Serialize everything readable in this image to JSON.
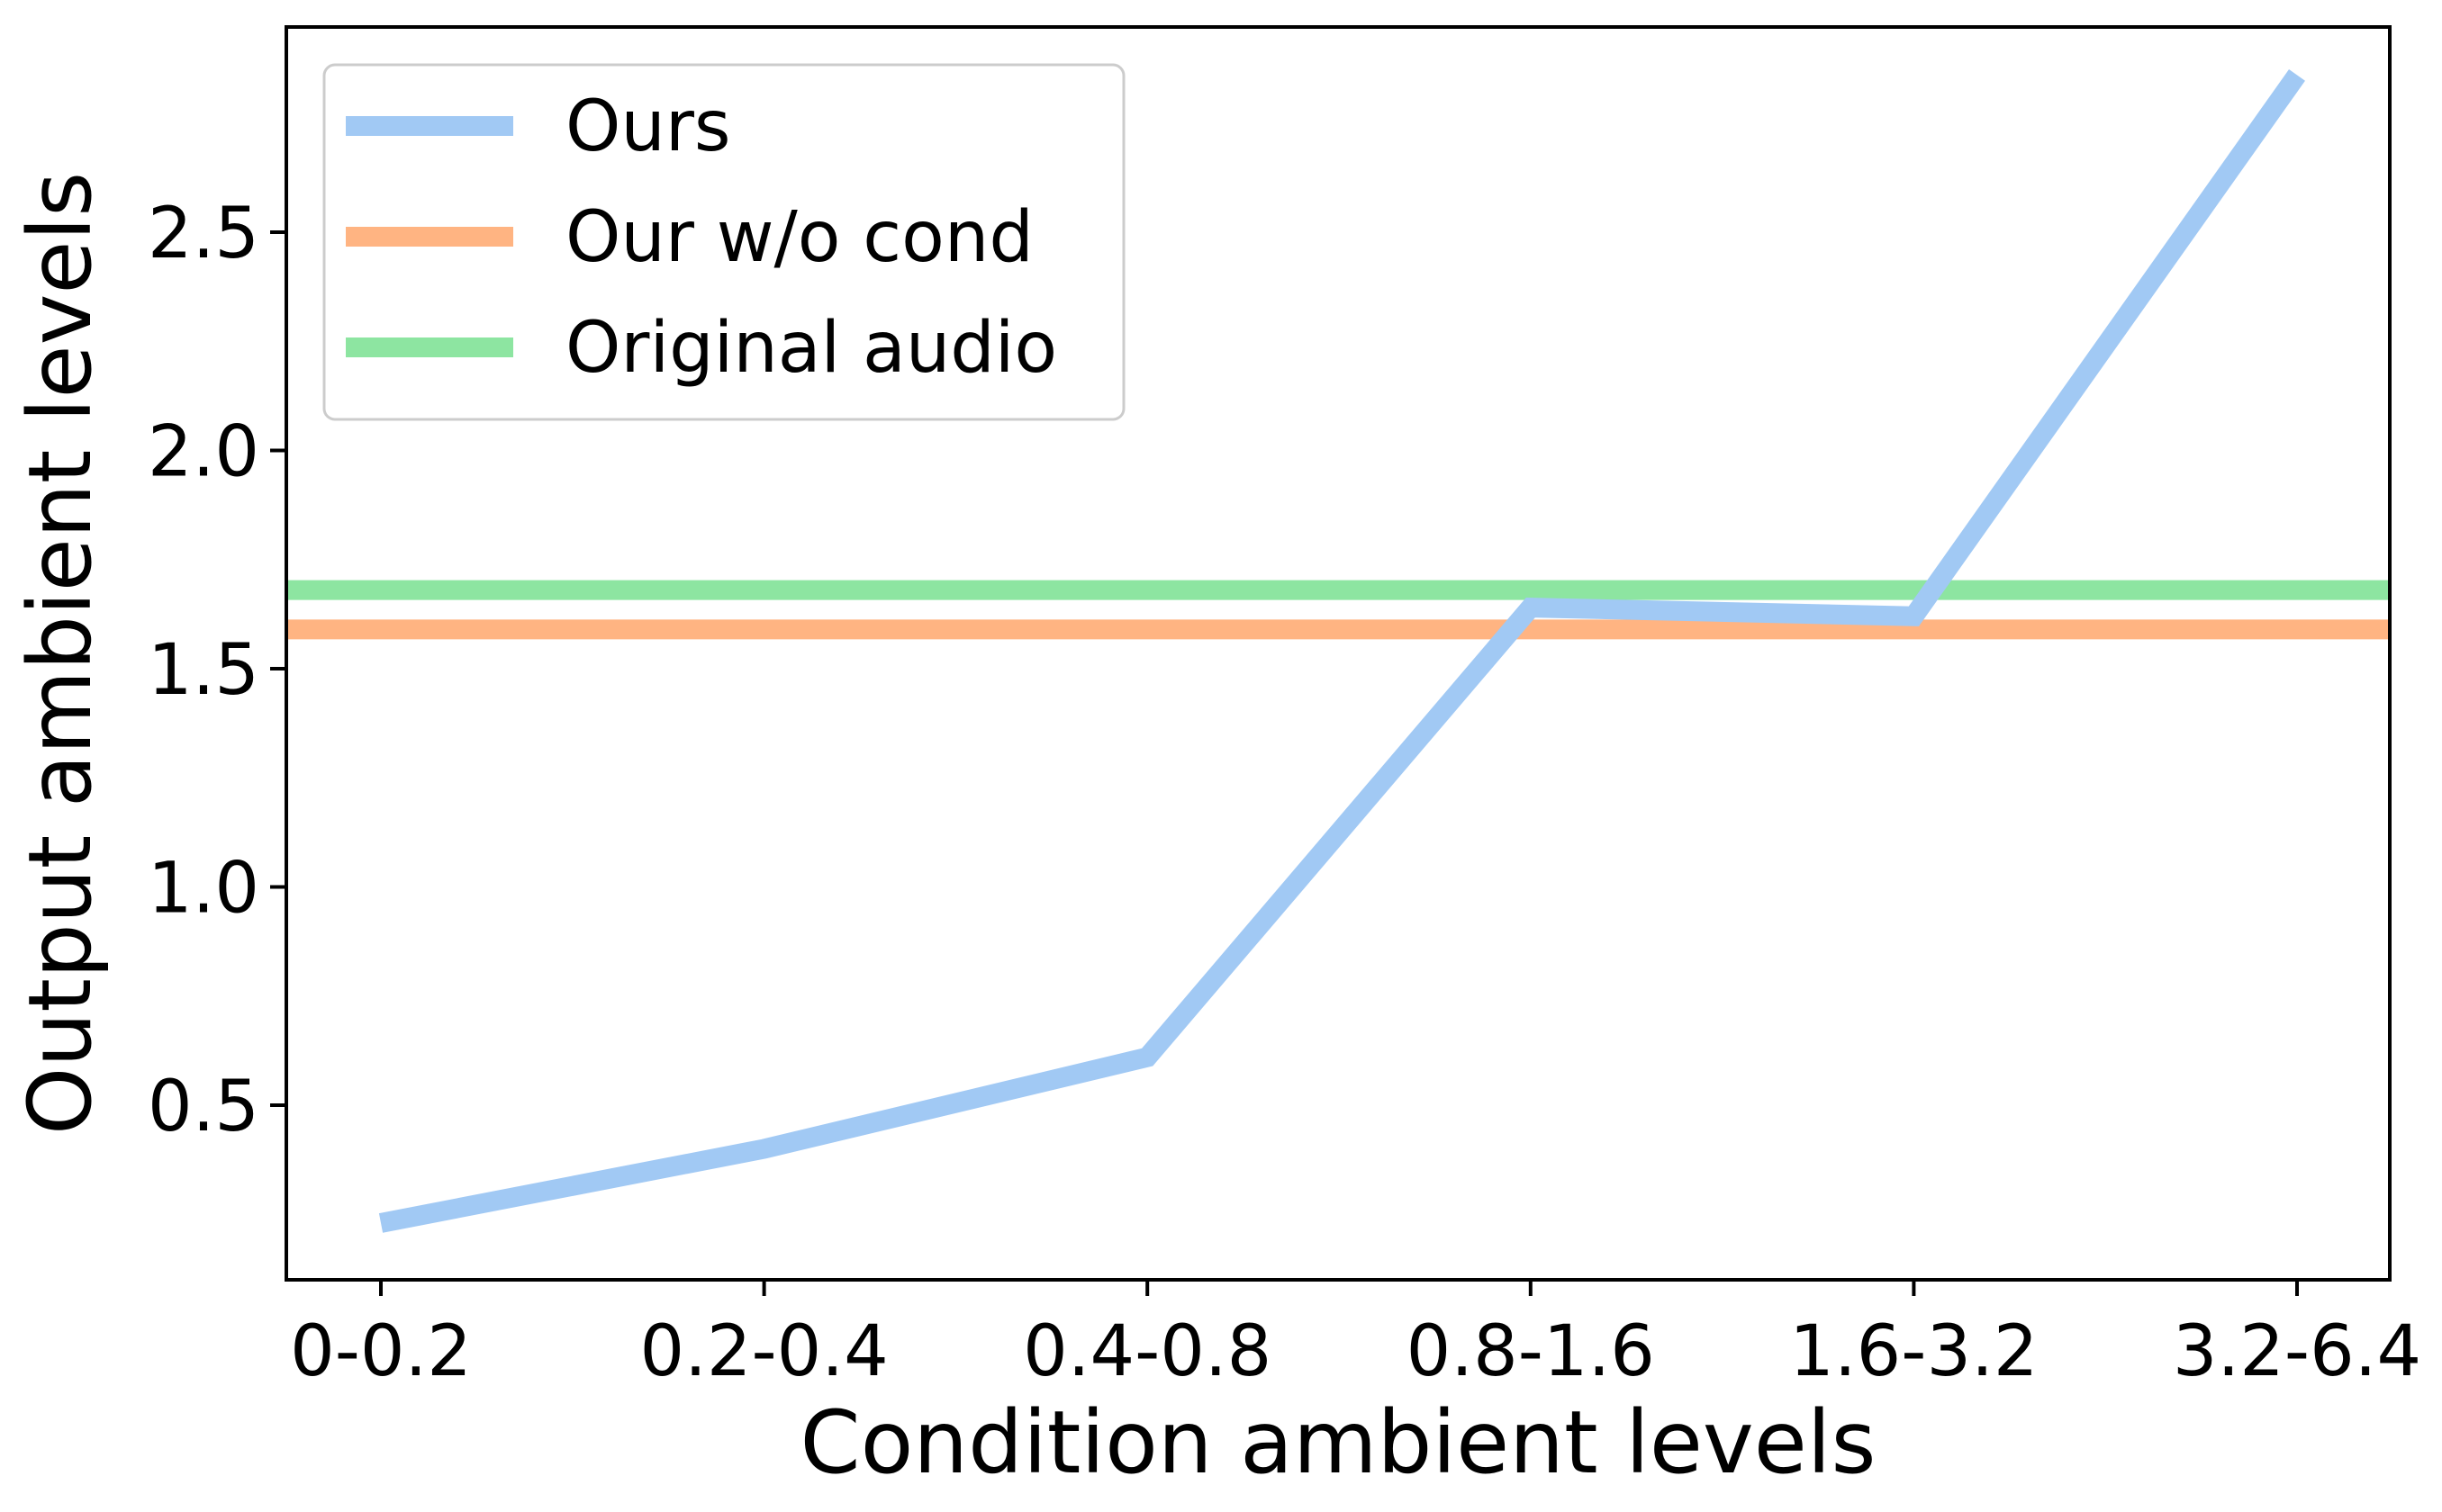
{
  "chart_data": {
    "type": "line",
    "title": "",
    "xlabel": "Condition ambient levels",
    "ylabel": "Output ambient levels",
    "categories": [
      "0-0.2",
      "0.2-0.4",
      "0.4-0.8",
      "0.8-1.6",
      "1.6-3.2",
      "3.2-6.4"
    ],
    "ylim": [
      0.1,
      2.97
    ],
    "yticks": [
      "0.5",
      "1.0",
      "1.5",
      "2.0",
      "2.5"
    ],
    "grid": false,
    "legend_position": "top-left",
    "series": [
      {
        "name": "Ours",
        "color": "#a1c9f4",
        "values": [
          0.23,
          0.4,
          0.61,
          1.64,
          1.62,
          2.86
        ]
      },
      {
        "name": "Our w/o cond",
        "color": "#ffb482",
        "values": [
          1.59,
          1.59,
          1.59,
          1.59,
          1.59,
          1.59
        ],
        "style": "horizontal"
      },
      {
        "name": "Original audio",
        "color": "#8de5a1",
        "values": [
          1.68,
          1.68,
          1.68,
          1.68,
          1.68,
          1.68
        ],
        "style": "horizontal"
      }
    ]
  }
}
